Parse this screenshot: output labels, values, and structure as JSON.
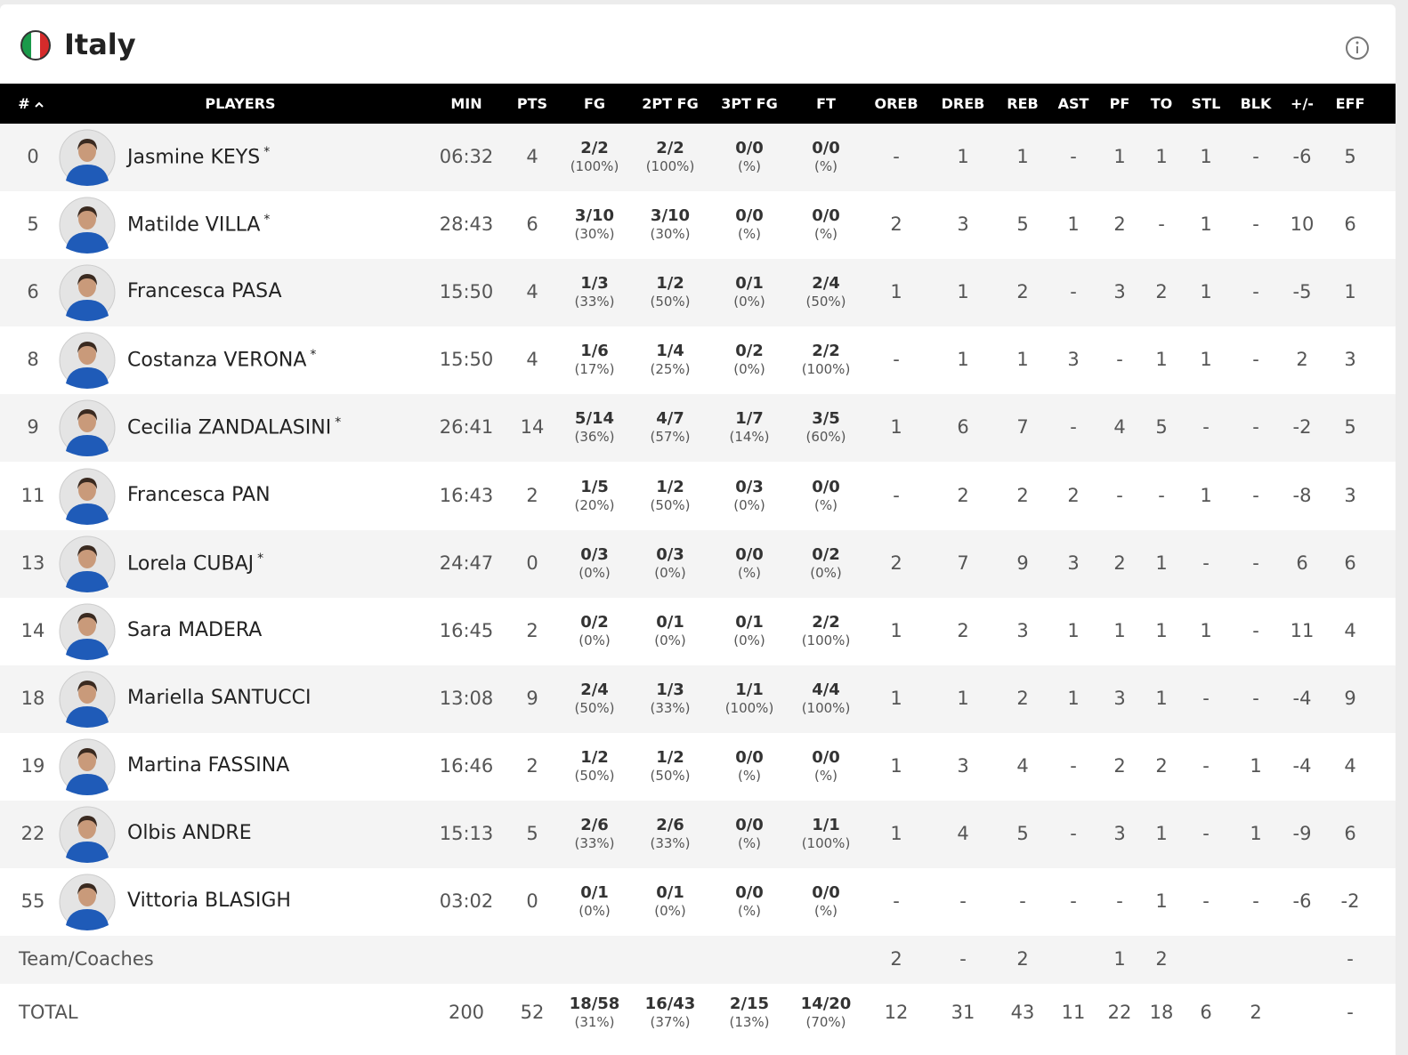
{
  "header": {
    "title": "Italy"
  },
  "table": {
    "headers": [
      "#",
      "PLAYERS",
      "MIN",
      "PTS",
      "FG",
      "2PT FG",
      "3PT FG",
      "FT",
      "OREB",
      "DREB",
      "REB",
      "AST",
      "PF",
      "TO",
      "STL",
      "BLK",
      "+/-",
      "EFF"
    ],
    "rows": [
      [
        "0",
        {
          "name": "Jasmine KEYS",
          "starter": "*"
        },
        "06:32",
        "4",
        [
          "2/2",
          "(100%)"
        ],
        [
          "2/2",
          "(100%)"
        ],
        [
          "0/0",
          "(%)"
        ],
        [
          "0/0",
          "(%)"
        ],
        "-",
        "1",
        "1",
        "-",
        "1",
        "1",
        "1",
        "-",
        "-6",
        "5"
      ],
      [
        "5",
        {
          "name": "Matilde VILLA",
          "starter": "*"
        },
        "28:43",
        "6",
        [
          "3/10",
          "(30%)"
        ],
        [
          "3/10",
          "(30%)"
        ],
        [
          "0/0",
          "(%)"
        ],
        [
          "0/0",
          "(%)"
        ],
        "2",
        "3",
        "5",
        "1",
        "2",
        "-",
        "1",
        "-",
        "10",
        "6"
      ],
      [
        "6",
        {
          "name": "Francesca PASA"
        },
        "15:50",
        "4",
        [
          "1/3",
          "(33%)"
        ],
        [
          "1/2",
          "(50%)"
        ],
        [
          "0/1",
          "(0%)"
        ],
        [
          "2/4",
          "(50%)"
        ],
        "1",
        "1",
        "2",
        "-",
        "3",
        "2",
        "1",
        "-",
        "-5",
        "1"
      ],
      [
        "8",
        {
          "name": "Costanza VERONA",
          "starter": "*"
        },
        "15:50",
        "4",
        [
          "1/6",
          "(17%)"
        ],
        [
          "1/4",
          "(25%)"
        ],
        [
          "0/2",
          "(0%)"
        ],
        [
          "2/2",
          "(100%)"
        ],
        "-",
        "1",
        "1",
        "3",
        "-",
        "1",
        "1",
        "-",
        "2",
        "3"
      ],
      [
        "9",
        {
          "name": "Cecilia ZANDALASINI",
          "starter": "*"
        },
        "26:41",
        "14",
        [
          "5/14",
          "(36%)"
        ],
        [
          "4/7",
          "(57%)"
        ],
        [
          "1/7",
          "(14%)"
        ],
        [
          "3/5",
          "(60%)"
        ],
        "1",
        "6",
        "7",
        "-",
        "4",
        "5",
        "-",
        "-",
        "-2",
        "5"
      ],
      [
        "11",
        {
          "name": "Francesca PAN"
        },
        "16:43",
        "2",
        [
          "1/5",
          "(20%)"
        ],
        [
          "1/2",
          "(50%)"
        ],
        [
          "0/3",
          "(0%)"
        ],
        [
          "0/0",
          "(%)"
        ],
        "-",
        "2",
        "2",
        "2",
        "-",
        "-",
        "1",
        "-",
        "-8",
        "3"
      ],
      [
        "13",
        {
          "name": "Lorela CUBAJ",
          "starter": "*"
        },
        "24:47",
        "0",
        [
          "0/3",
          "(0%)"
        ],
        [
          "0/3",
          "(0%)"
        ],
        [
          "0/0",
          "(%)"
        ],
        [
          "0/2",
          "(0%)"
        ],
        "2",
        "7",
        "9",
        "3",
        "2",
        "1",
        "-",
        "-",
        "6",
        "6"
      ],
      [
        "14",
        {
          "name": "Sara MADERA"
        },
        "16:45",
        "2",
        [
          "0/2",
          "(0%)"
        ],
        [
          "0/1",
          "(0%)"
        ],
        [
          "0/1",
          "(0%)"
        ],
        [
          "2/2",
          "(100%)"
        ],
        "1",
        "2",
        "3",
        "1",
        "1",
        "1",
        "1",
        "-",
        "11",
        "4"
      ],
      [
        "18",
        {
          "name": "Mariella SANTUCCI"
        },
        "13:08",
        "9",
        [
          "2/4",
          "(50%)"
        ],
        [
          "1/3",
          "(33%)"
        ],
        [
          "1/1",
          "(100%)"
        ],
        [
          "4/4",
          "(100%)"
        ],
        "1",
        "1",
        "2",
        "1",
        "3",
        "1",
        "-",
        "-",
        "-4",
        "9"
      ],
      [
        "19",
        {
          "name": "Martina FASSINA"
        },
        "16:46",
        "2",
        [
          "1/2",
          "(50%)"
        ],
        [
          "1/2",
          "(50%)"
        ],
        [
          "0/0",
          "(%)"
        ],
        [
          "0/0",
          "(%)"
        ],
        "1",
        "3",
        "4",
        "-",
        "2",
        "2",
        "-",
        "1",
        "-4",
        "4"
      ],
      [
        "22",
        {
          "name": "Olbis ANDRE"
        },
        "15:13",
        "5",
        [
          "2/6",
          "(33%)"
        ],
        [
          "2/6",
          "(33%)"
        ],
        [
          "0/0",
          "(%)"
        ],
        [
          "1/1",
          "(100%)"
        ],
        "1",
        "4",
        "5",
        "-",
        "3",
        "1",
        "-",
        "1",
        "-9",
        "6"
      ],
      [
        "55",
        {
          "name": "Vittoria BLASIGH"
        },
        "03:02",
        "0",
        [
          "0/1",
          "(0%)"
        ],
        [
          "0/1",
          "(0%)"
        ],
        [
          "0/0",
          "(%)"
        ],
        [
          "0/0",
          "(%)"
        ],
        "-",
        "-",
        "-",
        "-",
        "-",
        "1",
        "-",
        "-",
        "-6",
        "-2"
      ]
    ],
    "footer": [
      [
        "Team/Coaches",
        null,
        null,
        null,
        null,
        null,
        null,
        null,
        "2",
        "-",
        "2",
        null,
        "1",
        "2",
        null,
        null,
        null,
        "-"
      ],
      [
        "TOTAL",
        null,
        "200",
        "52",
        [
          "18/58",
          "(31%)"
        ],
        [
          "16/43",
          "(37%)"
        ],
        [
          "2/15",
          "(13%)"
        ],
        [
          "14/20",
          "(70%)"
        ],
        "12",
        "31",
        "43",
        "11",
        "22",
        "18",
        "6",
        "2",
        null,
        "-"
      ]
    ]
  }
}
